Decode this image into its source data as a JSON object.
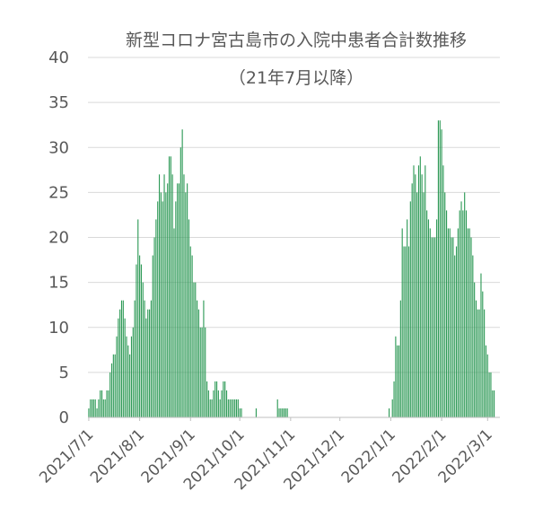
{
  "chart_data": {
    "type": "bar",
    "title": "新型コロナ宮古島市の入院中患者合計数推移",
    "subtitle": "（21年7月以降）",
    "xlabel": "",
    "ylabel": "",
    "ylim": [
      0,
      40
    ],
    "y_ticks": [
      "0",
      "5",
      "10",
      "15",
      "20",
      "25",
      "30",
      "35",
      "40"
    ],
    "x_range": [
      "2021-07-01",
      "2022-03-08"
    ],
    "x_tick_dates": [
      "2021-07-01",
      "2021-08-01",
      "2021-09-01",
      "2021-10-01",
      "2021-11-01",
      "2021-12-01",
      "2022-01-01",
      "2022-02-01",
      "2022-03-01"
    ],
    "x_tick_labels": [
      "2021/7/1",
      "2021/8/1",
      "2021/9/1",
      "2021/10/1",
      "2021/11/1",
      "2021/12/1",
      "2022/1/1",
      "2022/2/1",
      "2022/3/1"
    ],
    "grid": true,
    "legend": "none",
    "bar_color": "#2e9a57",
    "series": [
      {
        "segments": [
          {
            "start": "2021-07-01",
            "values": [
              1,
              2,
              2,
              2,
              2,
              1,
              2,
              3,
              3,
              2,
              2,
              3,
              3,
              5,
              6,
              7,
              7,
              9,
              11,
              12,
              13,
              13,
              11,
              9,
              8,
              7,
              9,
              10,
              13,
              17,
              22,
              18,
              17,
              15,
              13,
              11,
              12,
              12,
              13,
              18,
              20,
              22,
              24,
              27,
              25,
              24,
              27,
              25,
              26,
              29,
              29,
              27,
              21,
              24,
              26,
              26,
              30,
              32,
              27,
              25,
              26,
              22,
              19,
              18,
              15,
              15,
              13,
              12,
              10,
              10,
              13,
              10,
              4,
              3,
              2,
              2,
              3,
              4,
              4,
              3,
              2,
              3,
              4,
              4,
              3,
              2,
              2,
              2,
              2,
              2,
              2,
              2,
              1,
              1
            ]
          },
          {
            "start": "2021-10-11",
            "values": [
              1
            ]
          },
          {
            "start": "2021-10-24",
            "values": [
              2,
              1,
              1,
              1,
              1,
              1,
              1
            ]
          },
          {
            "start": "2021-12-31",
            "values": [
              1
            ]
          },
          {
            "start": "2022-01-02",
            "values": [
              2,
              4,
              9,
              8,
              8,
              13,
              21,
              19,
              19,
              22,
              19,
              24,
              26,
              28,
              27,
              25,
              28,
              29,
              27,
              25,
              28,
              23,
              22,
              21,
              20,
              20,
              20,
              22,
              33,
              33,
              32,
              28,
              25,
              23,
              21,
              21,
              20,
              20,
              18,
              19,
              21,
              23,
              24,
              23,
              25,
              23,
              21,
              21,
              20,
              18,
              15,
              13,
              12,
              12,
              16,
              14,
              12,
              8,
              7,
              5,
              5,
              3,
              3
            ]
          }
        ]
      }
    ]
  }
}
